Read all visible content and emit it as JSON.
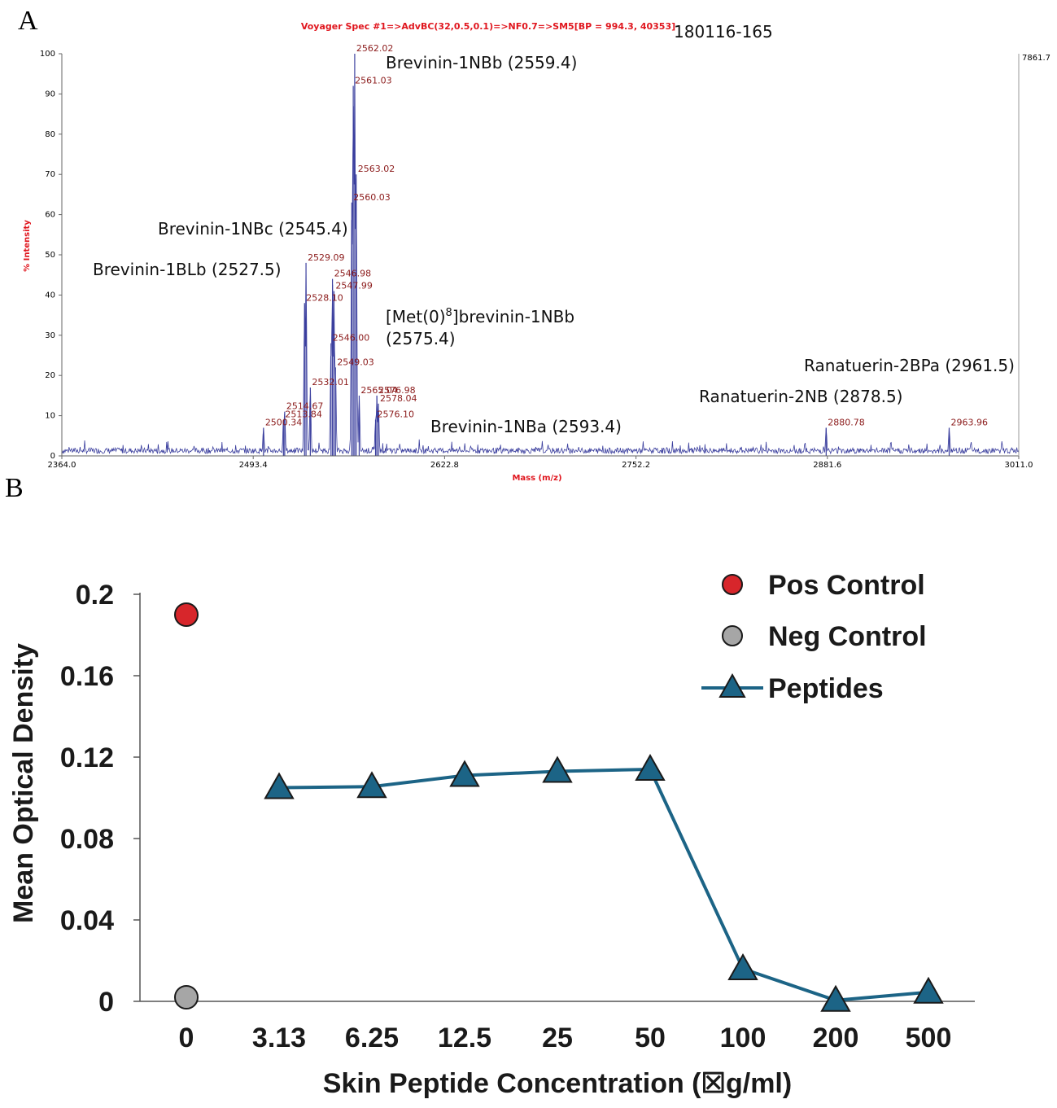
{
  "panel_labels": {
    "a": "A",
    "b": "B"
  },
  "chart_data": [
    {
      "type": "line",
      "name": "mass_spectrum",
      "title": "Voyager Spec #1=>AdvBC(32,0.5,0.1)=>NF0.7=>SM5[BP = 994.3, 40353]",
      "sample_id": "180116-165",
      "xlabel": "Mass (m/z)",
      "ylabel": "% Intensity",
      "xlim": [
        2364.0,
        3011.0
      ],
      "ylim": [
        0,
        100
      ],
      "x_ticks": [
        "2364.0",
        "2493.4",
        "2622.8",
        "2752.2",
        "2881.6",
        "3011.0"
      ],
      "y_ticks": [
        "0",
        "10",
        "20",
        "30",
        "40",
        "50",
        "60",
        "70",
        "80",
        "90",
        "100"
      ],
      "max_count_label": "7861.7",
      "peaks": [
        {
          "mx": 2500.34,
          "label": "2500.34",
          "y": 7
        },
        {
          "mx": 2513.84,
          "label": "2513.84",
          "y": 9
        },
        {
          "mx": 2514.67,
          "label": "2514.67",
          "y": 11
        },
        {
          "mx": 2528.1,
          "label": "2528.10",
          "y": 38
        },
        {
          "mx": 2529.09,
          "label": "2529.09",
          "y": 48
        },
        {
          "mx": 2532.01,
          "label": "2532.01",
          "y": 17
        },
        {
          "mx": 2546.0,
          "label": "2546.00",
          "y": 28
        },
        {
          "mx": 2546.98,
          "label": "2546.98",
          "y": 44
        },
        {
          "mx": 2547.99,
          "label": "2547.99",
          "y": 41
        },
        {
          "mx": 2549.03,
          "label": "2549.03",
          "y": 22
        },
        {
          "mx": 2560.03,
          "label": "2560.03",
          "y": 63
        },
        {
          "mx": 2561.03,
          "label": "2561.03",
          "y": 92
        },
        {
          "mx": 2562.02,
          "label": "2562.02",
          "y": 100
        },
        {
          "mx": 2563.02,
          "label": "2563.02",
          "y": 70
        },
        {
          "mx": 2565.04,
          "label": "2565.04",
          "y": 15
        },
        {
          "mx": 2576.1,
          "label": "2576.10",
          "y": 9
        },
        {
          "mx": 2576.98,
          "label": "2576.98",
          "y": 15
        },
        {
          "mx": 2578.04,
          "label": "2578.04",
          "y": 13
        },
        {
          "mx": 2880.78,
          "label": "2880.78",
          "y": 7
        },
        {
          "mx": 2963.96,
          "label": "2963.96",
          "y": 7
        }
      ],
      "annotations": [
        {
          "key": "nbb",
          "text": "Brevinin-1NBb (2559.4)"
        },
        {
          "key": "nbc",
          "text": "Brevinin-1NBc (2545.4)"
        },
        {
          "key": "blb",
          "text": "Brevinin-1BLb (2527.5)"
        },
        {
          "key": "met",
          "text_before": "[Met(0)",
          "sup": "8",
          "text_after": "]brevinin-1NBb",
          "text_line2": "(2575.4)"
        },
        {
          "key": "nba",
          "text": "Brevinin-1NBa (2593.4)"
        },
        {
          "key": "r2nb",
          "text": "Ranatuerin-2NB (2878.5)"
        },
        {
          "key": "r2bpa",
          "text": "Ranatuerin-2BPa (2961.5)"
        }
      ]
    },
    {
      "type": "line",
      "name": "optical_density",
      "xlabel": "Skin Peptide Concentration (☒g/ml)",
      "ylabel": "Mean Optical Density",
      "categories": [
        "0",
        "3.13",
        "6.25",
        "12.5",
        "25",
        "50",
        "100",
        "200",
        "500"
      ],
      "y_ticks": [
        "0",
        "0.04",
        "0.08",
        "0.12",
        "0.16",
        "0.2"
      ],
      "ylim": [
        0,
        0.2
      ],
      "series": [
        {
          "name": "Pos Control",
          "color": "#d7262b",
          "marker": "circle",
          "points": [
            {
              "x": "0",
              "y": 0.19
            }
          ]
        },
        {
          "name": "Neg Control",
          "color": "#a6a6a6",
          "marker": "circle",
          "points": [
            {
              "x": "0",
              "y": 0.002
            }
          ]
        },
        {
          "name": "Peptides",
          "color": "#1c6486",
          "marker": "triangle",
          "points": [
            {
              "x": "3.13",
              "y": 0.105
            },
            {
              "x": "6.25",
              "y": 0.1055
            },
            {
              "x": "12.5",
              "y": 0.111
            },
            {
              "x": "25",
              "y": 0.113
            },
            {
              "x": "50",
              "y": 0.114
            },
            {
              "x": "100",
              "y": 0.016
            },
            {
              "x": "200",
              "y": 0.0005
            },
            {
              "x": "500",
              "y": 0.0045
            }
          ]
        }
      ]
    }
  ]
}
